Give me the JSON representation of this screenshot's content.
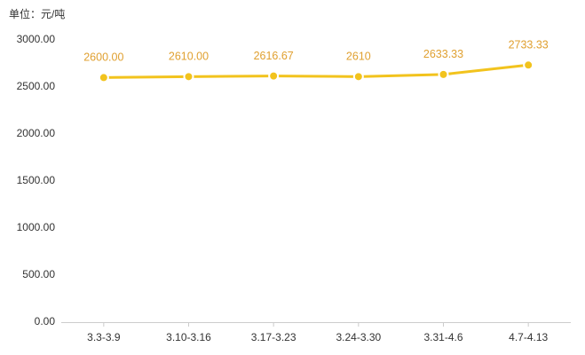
{
  "chart_data": {
    "type": "line",
    "title": "单位：元/吨",
    "categories": [
      "3.3-3.9",
      "3.10-3.16",
      "3.17-3.23",
      "3.24-3.30",
      "3.31-4.6",
      "4.7-4.13"
    ],
    "values": [
      2600,
      2610,
      2616.67,
      2610,
      2633.33,
      2733.33
    ],
    "value_labels": [
      "2600.00",
      "2610.00",
      "2616.67",
      "2610",
      "2633.33",
      "2733.33"
    ],
    "color": "#f2c31d",
    "label_color": "#e0a030",
    "ylim": [
      0,
      3000
    ],
    "yticks": [
      {
        "value": 0,
        "label": "0.00"
      },
      {
        "value": 500,
        "label": "500.00"
      },
      {
        "value": 1000,
        "label": "1000.00"
      },
      {
        "value": 1500,
        "label": "1500.00"
      },
      {
        "value": 2000,
        "label": "2000.00"
      },
      {
        "value": 2500,
        "label": "2500.00"
      },
      {
        "value": 3000,
        "label": "3000.00"
      }
    ],
    "grid": false
  }
}
